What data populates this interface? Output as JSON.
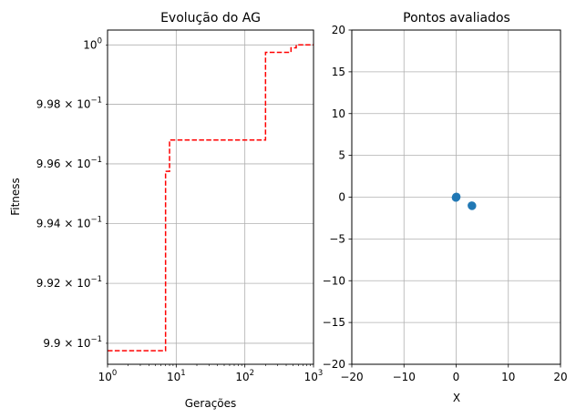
{
  "chart_data": [
    {
      "type": "line",
      "title": "Evolução do AG",
      "xlabel": "Gerações",
      "ylabel": "Fitness",
      "xscale": "log",
      "yscale": "log",
      "xlim": [
        1,
        1000
      ],
      "ylim": [
        0.9893,
        1.0005
      ],
      "grid": true,
      "x_ticks": [
        {
          "value": 1,
          "base": "10",
          "exp": "0"
        },
        {
          "value": 10,
          "base": "10",
          "exp": "1"
        },
        {
          "value": 100,
          "base": "10",
          "exp": "2"
        },
        {
          "value": 1000,
          "base": "10",
          "exp": "3"
        }
      ],
      "y_ticks": [
        {
          "value": 0.99,
          "mant": "9.9 × 10",
          "exp": "−1"
        },
        {
          "value": 0.992,
          "mant": "9.92 × 10",
          "exp": "−1"
        },
        {
          "value": 0.994,
          "mant": "9.94 × 10",
          "exp": "−1"
        },
        {
          "value": 0.996,
          "mant": "9.96 × 10",
          "exp": "−1"
        },
        {
          "value": 0.998,
          "mant": "9.98 × 10",
          "exp": "−1"
        },
        {
          "value": 1.0,
          "mant": "10",
          "exp": "0"
        }
      ],
      "series": [
        {
          "color": "#ff0000",
          "linestyle": "dashed",
          "x": [
            1,
            7,
            7,
            8,
            8,
            200,
            200,
            470,
            470,
            560,
            560,
            1000
          ],
          "y": [
            0.98975,
            0.98975,
            0.99575,
            0.99575,
            0.9968,
            0.9968,
            0.99975,
            0.99975,
            0.9999,
            0.9999,
            1.0,
            1.0
          ]
        }
      ]
    },
    {
      "type": "scatter",
      "title": "Pontos avaliados",
      "xlabel": "X",
      "ylabel": "",
      "xlim": [
        -20,
        20
      ],
      "ylim": [
        -20,
        20
      ],
      "grid": true,
      "x_ticks": [
        "−20",
        "−10",
        "0",
        "10",
        "20"
      ],
      "y_ticks": [
        "−20",
        "−15",
        "−10",
        "−5",
        "0",
        "5",
        "10",
        "15",
        "20"
      ],
      "series": [
        {
          "color": "#1f77b4",
          "points": [
            {
              "x": 0,
              "y": 0
            },
            {
              "x": 0.05,
              "y": 0.05
            },
            {
              "x": -0.05,
              "y": -0.05
            },
            {
              "x": 3.0,
              "y": -1.0
            },
            {
              "x": 3.05,
              "y": -1.05
            }
          ]
        }
      ]
    }
  ]
}
